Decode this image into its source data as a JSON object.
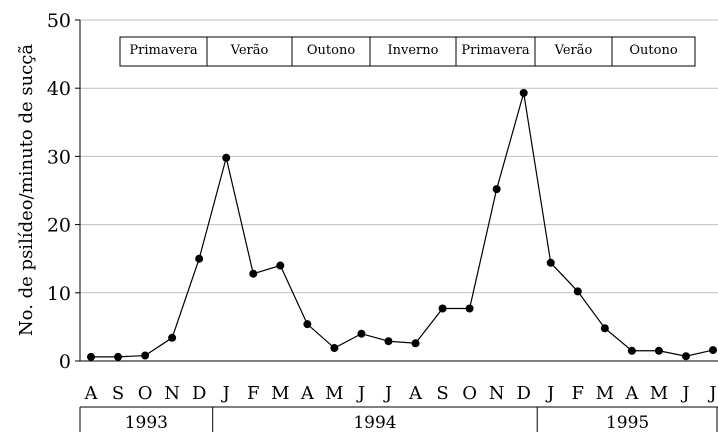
{
  "chart_data": {
    "type": "line",
    "title": "",
    "xlabel": "",
    "ylabel": "No. de psilídeo/minuto de sucçã",
    "ylim": [
      0,
      50
    ],
    "yticks": [
      0,
      10,
      20,
      30,
      40,
      50
    ],
    "grid": "horizontal",
    "categories": [
      "A",
      "S",
      "O",
      "N",
      "D",
      "J",
      "F",
      "M",
      "A",
      "M",
      "J",
      "J",
      "A",
      "S",
      "O",
      "N",
      "D",
      "J",
      "F",
      "M",
      "A",
      "M",
      "J",
      "J"
    ],
    "values": [
      0.6,
      0.6,
      0.8,
      3.4,
      15.0,
      29.8,
      12.8,
      14.0,
      5.4,
      1.9,
      4.0,
      2.9,
      2.6,
      7.7,
      7.7,
      25.2,
      39.3,
      14.4,
      10.2,
      4.8,
      1.5,
      1.5,
      0.7,
      1.6
    ],
    "years": [
      {
        "label": "1993",
        "start": 0,
        "end": 4
      },
      {
        "label": "1994",
        "start": 5,
        "end": 16
      },
      {
        "label": "1995",
        "start": 17,
        "end": 23
      }
    ],
    "seasons": [
      {
        "label": "Primavera"
      },
      {
        "label": "Verão"
      },
      {
        "label": "Outono"
      },
      {
        "label": "Inverno"
      },
      {
        "label": "Primavera"
      },
      {
        "label": "Verão"
      },
      {
        "label": "Outono"
      }
    ],
    "colors": {
      "line": "#000000",
      "grid": "#bfbfbf",
      "marker": "#000000"
    }
  }
}
